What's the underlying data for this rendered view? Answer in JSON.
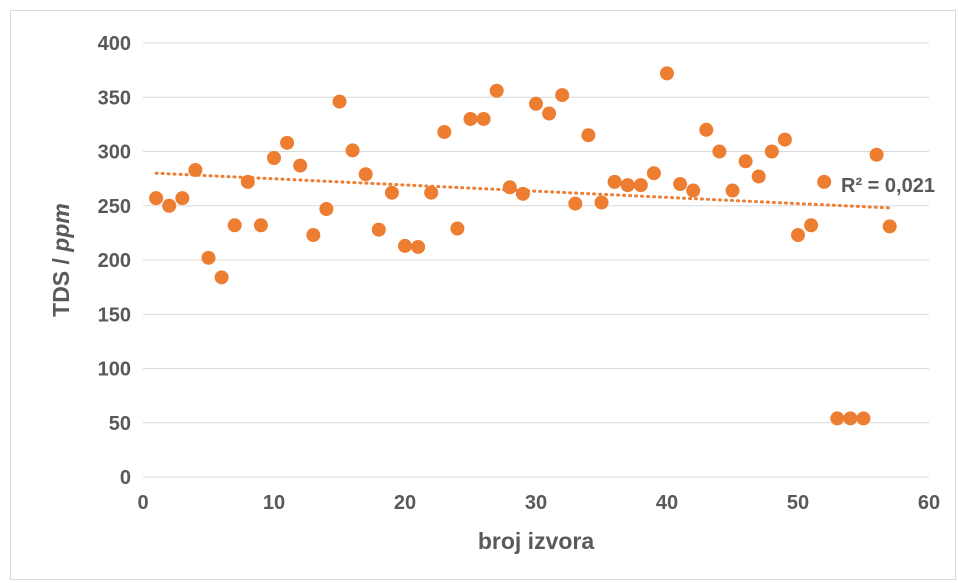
{
  "chart_data": {
    "type": "scatter",
    "title": "",
    "xlabel": "broj izvora",
    "ylabel_main": "TDS / ",
    "ylabel_unit": "ppm",
    "xlim": [
      0,
      60
    ],
    "ylim": [
      0,
      400
    ],
    "x_ticks": [
      0,
      10,
      20,
      30,
      40,
      50,
      60
    ],
    "y_ticks": [
      0,
      50,
      100,
      150,
      200,
      250,
      300,
      350,
      400
    ],
    "grid": "horizontal",
    "legend": "none",
    "marker_color": "#ED7D31",
    "trendline": {
      "type": "linear",
      "style": "dotted",
      "color": "#ED7D31",
      "x": [
        1,
        57
      ],
      "y": [
        280,
        248
      ],
      "label": "R² = 0,021"
    },
    "series": [
      {
        "x": [
          1,
          2,
          3,
          4,
          5,
          6,
          7,
          8,
          9,
          10,
          11,
          12,
          13,
          14,
          15,
          16,
          17,
          18,
          19,
          20,
          21,
          22,
          23,
          24,
          25,
          26,
          27,
          28,
          29,
          30,
          31,
          32,
          33,
          34,
          35,
          36,
          37,
          38,
          39,
          40,
          41,
          42,
          43,
          44,
          45,
          46,
          47,
          48,
          49,
          50,
          51,
          52,
          53,
          54,
          55,
          56,
          57
        ],
        "y": [
          257,
          250,
          257,
          283,
          202,
          184,
          232,
          272,
          232,
          294,
          308,
          287,
          223,
          247,
          346,
          301,
          279,
          228,
          262,
          213,
          212,
          262,
          318,
          229,
          330,
          330,
          356,
          267,
          261,
          344,
          335,
          352,
          252,
          315,
          253,
          272,
          269,
          269,
          280,
          372,
          270,
          264,
          320,
          300,
          264,
          291,
          277,
          300,
          311,
          223,
          232,
          272,
          54,
          54,
          54,
          297,
          231
        ]
      }
    ]
  }
}
